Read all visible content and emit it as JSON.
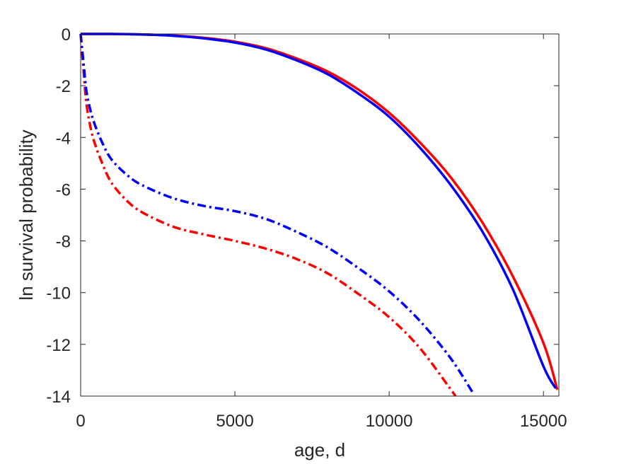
{
  "chart_data": {
    "type": "line",
    "xlabel": "age, d",
    "ylabel": "ln survival probability",
    "xlim": [
      0,
      15500
    ],
    "ylim": [
      -14,
      0
    ],
    "xticks": [
      0,
      5000,
      10000,
      15000
    ],
    "yticks": [
      0,
      -2,
      -4,
      -6,
      -8,
      -10,
      -12,
      -14
    ],
    "grid": false,
    "legend": "none",
    "series": [
      {
        "color": "#ff0000",
        "style": "solid",
        "x": [
          0,
          1000,
          2000,
          3000,
          4000,
          5000,
          6000,
          7000,
          8000,
          9000,
          10000,
          11000,
          12000,
          13000,
          14000,
          15000,
          15450
        ],
        "y": [
          0,
          0,
          -0.02,
          -0.06,
          -0.15,
          -0.3,
          -0.55,
          -0.95,
          -1.45,
          -2.15,
          -3.05,
          -4.2,
          -5.55,
          -7.25,
          -9.35,
          -11.95,
          -13.75
        ]
      },
      {
        "color": "#0000ff",
        "style": "solid",
        "x": [
          0,
          1000,
          2000,
          3000,
          4000,
          5000,
          6000,
          7000,
          8000,
          9000,
          10000,
          11000,
          12000,
          13000,
          14000,
          15000,
          15400
        ],
        "y": [
          0,
          0,
          -0.02,
          -0.07,
          -0.17,
          -0.33,
          -0.6,
          -1.02,
          -1.55,
          -2.3,
          -3.2,
          -4.4,
          -5.85,
          -7.6,
          -9.85,
          -12.85,
          -13.7
        ]
      },
      {
        "color": "#ff0000",
        "style": "dashdot",
        "x": [
          0,
          100,
          200,
          400,
          700,
          1000,
          1500,
          2000,
          3000,
          4000,
          5000,
          6000,
          7000,
          8000,
          9000,
          10000,
          11000,
          12000,
          12150
        ],
        "y": [
          0,
          -1.5,
          -2.8,
          -4.0,
          -5.0,
          -5.75,
          -6.45,
          -6.9,
          -7.45,
          -7.75,
          -8.0,
          -8.3,
          -8.7,
          -9.25,
          -10.05,
          -10.95,
          -12.15,
          -13.75,
          -14.0
        ]
      },
      {
        "color": "#0000ff",
        "style": "dashdot",
        "x": [
          0,
          100,
          200,
          400,
          700,
          1000,
          1500,
          2000,
          3000,
          4000,
          5000,
          6000,
          7000,
          8000,
          9000,
          10000,
          11000,
          12000,
          12700
        ],
        "y": [
          0,
          -1.2,
          -2.3,
          -3.3,
          -4.2,
          -4.85,
          -5.45,
          -5.85,
          -6.35,
          -6.65,
          -6.85,
          -7.15,
          -7.65,
          -8.25,
          -9.05,
          -9.95,
          -11.1,
          -12.55,
          -13.85
        ]
      }
    ]
  }
}
